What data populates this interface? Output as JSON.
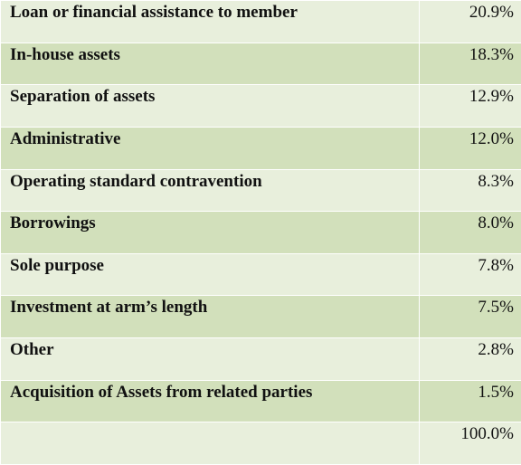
{
  "rows": [
    {
      "label": "Loan or financial assistance to member",
      "value": "20.9%"
    },
    {
      "label": "In-house assets",
      "value": "18.3%"
    },
    {
      "label": "Separation of assets",
      "value": "12.9%"
    },
    {
      "label": "Administrative",
      "value": "12.0%"
    },
    {
      "label": "Operating standard contravention",
      "value": "8.3%"
    },
    {
      "label": "Borrowings",
      "value": "8.0%"
    },
    {
      "label": "Sole purpose",
      "value": "7.8%"
    },
    {
      "label": "Investment at arm’s length",
      "value": "7.5%"
    },
    {
      "label": "Other",
      "value": "2.8%"
    },
    {
      "label": "Acquisition of Assets from related parties",
      "value": "1.5%"
    }
  ],
  "total": {
    "label": "",
    "value": "100.0%"
  },
  "colors": {
    "light_row": "#e8efdc",
    "dark_row": "#d2e0bb",
    "border": "#ffffff"
  }
}
